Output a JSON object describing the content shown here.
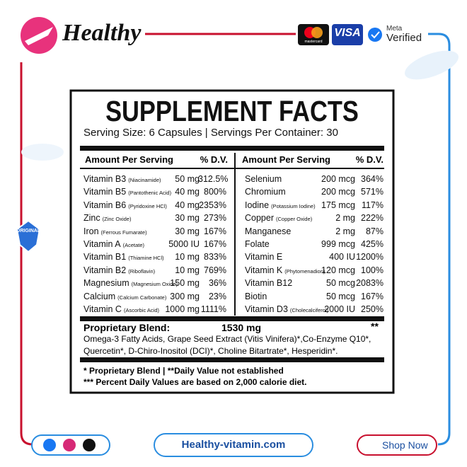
{
  "brand": "Healthy",
  "badges": {
    "mastercard": "mastercard",
    "visa": "VISA",
    "meta": "Meta",
    "verified": "Verified"
  },
  "original_badge": "ORIGINAL",
  "panel": {
    "title": "SUPPLEMENT FACTS",
    "serving": "Serving Size: 6 Capsules | Servings Per Container: 30",
    "headers": {
      "amount": "Amount Per Serving",
      "dv": "% D.V."
    },
    "left_rows": [
      {
        "name": "Vitamin B3",
        "sub": "(Niacinamide)",
        "amount": "50 mg",
        "dv": "312.5%"
      },
      {
        "name": "Vitamin B5",
        "sub": "(Pantothenic Acid)",
        "amount": "40 mg",
        "dv": "800%"
      },
      {
        "name": "Vitamin B6",
        "sub": "(Pyridoxine HCl)",
        "amount": "40 mg",
        "dv": "2353%"
      },
      {
        "name": "Zinc",
        "sub": "(Zinc Oxide)",
        "amount": "30 mg",
        "dv": "273%"
      },
      {
        "name": "Iron",
        "sub": "(Ferrous Fumarate)",
        "amount": "30 mg",
        "dv": "167%"
      },
      {
        "name": "Vitamin A",
        "sub": "(Acetate)",
        "amount": "5000 IU",
        "dv": "167%"
      },
      {
        "name": "Vitamin B1",
        "sub": "(Thiamine HCl)",
        "amount": "10 mg",
        "dv": "833%"
      },
      {
        "name": "Vitamin B2",
        "sub": "(Riboflavin)",
        "amount": "10 mg",
        "dv": "769%"
      },
      {
        "name": "Magnesium",
        "sub": "(Magnesium Oxide)",
        "amount": "150 mg",
        "dv": "36%"
      },
      {
        "name": "Calcium",
        "sub": "(Calcium Carbonate)",
        "amount": "300 mg",
        "dv": "23%"
      },
      {
        "name": "Vitamin C",
        "sub": "(Ascorbic Acid)",
        "amount": "1000 mg",
        "dv": "1111%"
      }
    ],
    "right_rows": [
      {
        "name": "Selenium",
        "amount": "200 mcg",
        "dv": "364%"
      },
      {
        "name": "Chromium",
        "amount": "200 mcg",
        "dv": "571%"
      },
      {
        "name": "Iodine",
        "sub": "(Potassium Iodine)",
        "amount": "175 mcg",
        "dv": "117%"
      },
      {
        "name": "Copper",
        "sub": "(Copper Oxide)",
        "amount": "2 mg",
        "dv": "222%"
      },
      {
        "name": "Manganese",
        "amount": "2 mg",
        "dv": "87%"
      },
      {
        "name": "Folate",
        "amount": "999 mcg",
        "dv": "425%"
      },
      {
        "name": "Vitamin E",
        "amount": "400 IU",
        "dv": "1200%"
      },
      {
        "name": "Vitamin K",
        "sub": "(Phytomenadion)",
        "amount": "120 mcg",
        "dv": "100%"
      },
      {
        "name": "Vitamin B12",
        "amount": "50 mcg",
        "dv": "2083%"
      },
      {
        "name": "Biotin",
        "amount": "50 mcg",
        "dv": "167%"
      },
      {
        "name": "Vitamin D3",
        "sub": "(Cholecalciferol)",
        "amount": "2000 IU",
        "dv": "250%"
      }
    ],
    "blend": {
      "label": "Proprietary Blend:",
      "amount": "1530 mg",
      "mark": "**",
      "ingredients": "Omega-3 Fatty Acids, Grape Seed Extract (Vitis Vinifera)*,Co-Enzyme Q10*, Quercetin*, D-Chiro-Inositol (DCI)*, Choline Bitartrate*, Hesperidin*."
    },
    "footnotes": [
      "* Proprietary Blend | **Daily Value not established",
      "*** Percent Daily Values are based on 2,000 calorie diet."
    ]
  },
  "footer": {
    "website": "Healthy-vitamin.com",
    "shop": "Shop Now"
  }
}
